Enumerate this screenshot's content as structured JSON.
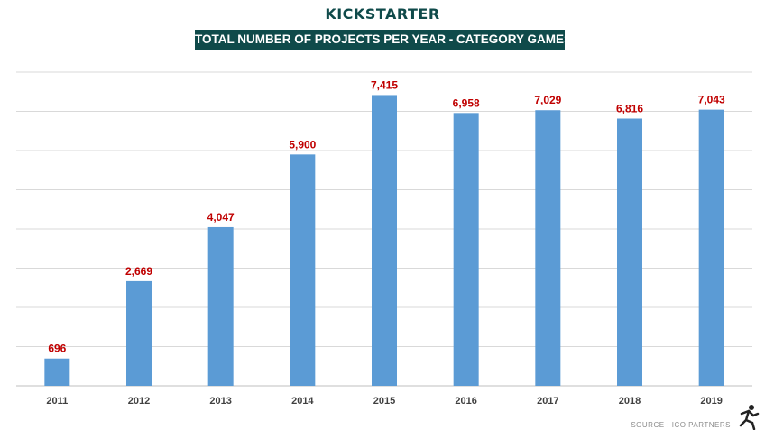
{
  "header": {
    "brand": "KICKSTARTER",
    "title": "TOTAL NUMBER OF PROJECTS PER YEAR - CATEGORY GAMES"
  },
  "footer": {
    "source": "SOURCE : ICO PARTNERS"
  },
  "colors": {
    "bar": "#5b9bd5",
    "label": "#c00000",
    "title_bg": "#0f4a4a",
    "grid": "#d9d9d9"
  },
  "chart_data": {
    "type": "bar",
    "title": "TOTAL NUMBER OF PROJECTS PER YEAR - CATEGORY GAMES",
    "xlabel": "",
    "ylabel": "",
    "categories": [
      "2011",
      "2012",
      "2013",
      "2014",
      "2015",
      "2016",
      "2017",
      "2018",
      "2019"
    ],
    "values": [
      696,
      2669,
      4047,
      5900,
      7415,
      6958,
      7029,
      6816,
      7043
    ],
    "data_labels": [
      "696",
      "2,669",
      "4,047",
      "5,900",
      "7,415",
      "6,958",
      "7,029",
      "6,816",
      "7,043"
    ],
    "ylim": [
      0,
      8000
    ],
    "grid": true,
    "legend": "none"
  }
}
